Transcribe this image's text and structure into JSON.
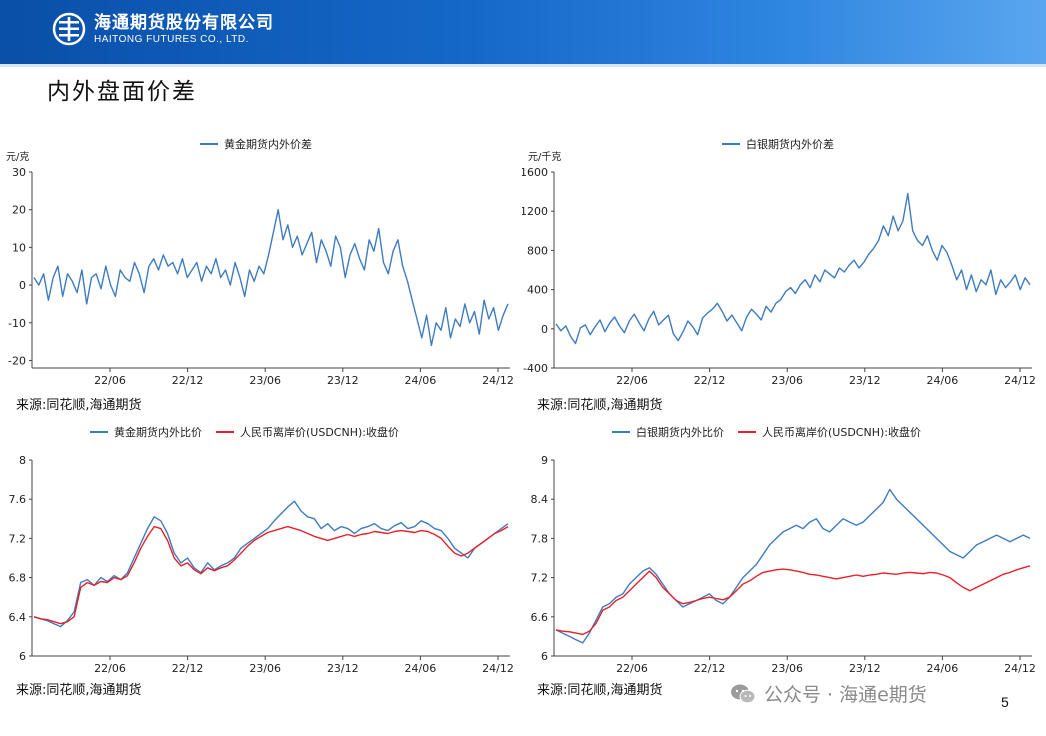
{
  "header": {
    "company_cn": "海通期货股份有限公司",
    "company_en": "HAITONG FUTURES CO., LTD."
  },
  "page_title": "内外盘面价差",
  "footer": {
    "wechat_label": "公众号 · 海通e期货",
    "page_number": "5"
  },
  "colors": {
    "blue": "#3f7cbf",
    "red": "#e8202a",
    "header": "#1568c8"
  },
  "chart_data": [
    {
      "id": "gold-spread",
      "type": "line",
      "unit": "元/克",
      "source": "来源:同花顺,海通期货",
      "legend_position": "top",
      "x_ticks": [
        "22/06",
        "22/12",
        "23/06",
        "23/12",
        "24/06",
        "24/12"
      ],
      "y_ticks": [
        "30",
        "20",
        "10",
        "0",
        "-10",
        "-20"
      ],
      "ylim": [
        -22,
        30
      ],
      "series": [
        {
          "name": "黄金期货内外价差",
          "color": "#3f7cbf",
          "values": [
            2,
            0,
            3,
            -4,
            2,
            5,
            -3,
            3,
            1,
            -2,
            4,
            -5,
            2,
            3,
            -1,
            5,
            0,
            -3,
            4,
            2,
            1,
            6,
            3,
            -2,
            5,
            7,
            4,
            8,
            5,
            6,
            3,
            7,
            2,
            4,
            6,
            1,
            5,
            3,
            7,
            2,
            4,
            0,
            6,
            2,
            -3,
            4,
            1,
            5,
            3,
            8,
            14,
            20,
            12,
            16,
            10,
            13,
            8,
            11,
            14,
            6,
            12,
            9,
            5,
            13,
            10,
            2,
            8,
            11,
            7,
            4,
            12,
            9,
            15,
            6,
            3,
            9,
            12,
            5,
            1,
            -4,
            -9,
            -14,
            -8,
            -16,
            -10,
            -12,
            -6,
            -14,
            -9,
            -11,
            -5,
            -10,
            -7,
            -13,
            -4,
            -9,
            -6,
            -12,
            -8,
            -5
          ]
        }
      ]
    },
    {
      "id": "silver-spread",
      "type": "line",
      "unit": "元/千克",
      "source": "来源:同花顺,海通期货",
      "legend_position": "top",
      "x_ticks": [
        "22/06",
        "22/12",
        "23/06",
        "23/12",
        "24/06",
        "24/12"
      ],
      "y_ticks": [
        "1600",
        "1200",
        "800",
        "400",
        "0",
        "-400"
      ],
      "ylim": [
        -400,
        1600
      ],
      "series": [
        {
          "name": "白银期货内外价差",
          "color": "#3f7cbf",
          "values": [
            50,
            -20,
            30,
            -80,
            -150,
            10,
            40,
            -60,
            20,
            90,
            -30,
            60,
            120,
            30,
            -40,
            80,
            150,
            60,
            -20,
            100,
            180,
            40,
            90,
            140,
            -50,
            -120,
            -30,
            80,
            20,
            -60,
            110,
            160,
            200,
            260,
            180,
            80,
            140,
            60,
            -20,
            120,
            200,
            150,
            90,
            230,
            170,
            260,
            300,
            380,
            420,
            360,
            450,
            500,
            420,
            550,
            480,
            600,
            560,
            520,
            620,
            580,
            650,
            700,
            620,
            680,
            760,
            820,
            900,
            1050,
            950,
            1150,
            1000,
            1100,
            1380,
            1000,
            900,
            850,
            950,
            800,
            700,
            850,
            780,
            650,
            500,
            600,
            400,
            550,
            380,
            500,
            450,
            600,
            350,
            500,
            420,
            480,
            550,
            400,
            520,
            450
          ]
        }
      ]
    },
    {
      "id": "gold-ratio",
      "type": "line",
      "unit": "",
      "source": "来源:同花顺,海通期货",
      "legend_position": "top",
      "x_ticks": [
        "22/06",
        "22/12",
        "23/06",
        "23/12",
        "24/06",
        "24/12"
      ],
      "y_ticks": [
        "8",
        "7.6",
        "7.2",
        "6.8",
        "6.4",
        "6"
      ],
      "ylim": [
        6,
        8
      ],
      "series": [
        {
          "name": "黄金期货内外比价",
          "color": "#3f7cbf",
          "values": [
            6.4,
            6.38,
            6.36,
            6.33,
            6.3,
            6.36,
            6.45,
            6.75,
            6.78,
            6.72,
            6.8,
            6.76,
            6.82,
            6.78,
            6.85,
            7.0,
            7.15,
            7.3,
            7.42,
            7.38,
            7.25,
            7.05,
            6.95,
            7.0,
            6.9,
            6.85,
            6.95,
            6.88,
            6.92,
            6.95,
            7.0,
            7.1,
            7.15,
            7.2,
            7.25,
            7.3,
            7.38,
            7.45,
            7.52,
            7.58,
            7.48,
            7.42,
            7.4,
            7.3,
            7.35,
            7.28,
            7.32,
            7.3,
            7.25,
            7.3,
            7.32,
            7.35,
            7.3,
            7.28,
            7.33,
            7.36,
            7.3,
            7.32,
            7.38,
            7.35,
            7.3,
            7.28,
            7.2,
            7.1,
            7.05,
            7.0,
            7.1,
            7.15,
            7.2,
            7.25,
            7.3,
            7.35
          ]
        },
        {
          "name": "人民币离岸价(USDCNH):收盘价",
          "color": "#e8202a",
          "values": [
            6.4,
            6.38,
            6.37,
            6.35,
            6.33,
            6.35,
            6.4,
            6.7,
            6.75,
            6.72,
            6.76,
            6.75,
            6.8,
            6.78,
            6.82,
            6.95,
            7.1,
            7.22,
            7.32,
            7.3,
            7.18,
            7.0,
            6.92,
            6.95,
            6.88,
            6.84,
            6.9,
            6.87,
            6.9,
            6.92,
            6.98,
            7.05,
            7.12,
            7.18,
            7.22,
            7.26,
            7.28,
            7.3,
            7.32,
            7.3,
            7.28,
            7.25,
            7.22,
            7.2,
            7.18,
            7.2,
            7.22,
            7.24,
            7.22,
            7.24,
            7.25,
            7.27,
            7.26,
            7.25,
            7.27,
            7.28,
            7.27,
            7.26,
            7.28,
            7.27,
            7.24,
            7.2,
            7.12,
            7.05,
            7.02,
            7.05,
            7.1,
            7.15,
            7.2,
            7.25,
            7.28,
            7.32
          ]
        }
      ]
    },
    {
      "id": "silver-ratio",
      "type": "line",
      "unit": "",
      "source": "来源:同花顺,海通期货",
      "legend_position": "top",
      "x_ticks": [
        "22/06",
        "22/12",
        "23/06",
        "23/12",
        "24/06",
        "24/12"
      ],
      "y_ticks": [
        "9",
        "8.4",
        "7.8",
        "7.2",
        "6.6",
        "6"
      ],
      "ylim": [
        6,
        9
      ],
      "series": [
        {
          "name": "白银期货内外比价",
          "color": "#3f7cbf",
          "values": [
            6.4,
            6.35,
            6.3,
            6.25,
            6.2,
            6.35,
            6.55,
            6.75,
            6.8,
            6.9,
            6.95,
            7.1,
            7.2,
            7.3,
            7.35,
            7.25,
            7.1,
            6.95,
            6.85,
            6.75,
            6.8,
            6.85,
            6.9,
            6.95,
            6.85,
            6.8,
            6.9,
            7.05,
            7.2,
            7.3,
            7.4,
            7.55,
            7.7,
            7.8,
            7.9,
            7.95,
            8.0,
            7.95,
            8.05,
            8.1,
            7.95,
            7.9,
            8.0,
            8.1,
            8.05,
            8.0,
            8.05,
            8.15,
            8.25,
            8.35,
            8.55,
            8.4,
            8.3,
            8.2,
            8.1,
            8.0,
            7.9,
            7.8,
            7.7,
            7.6,
            7.55,
            7.5,
            7.6,
            7.7,
            7.75,
            7.8,
            7.85,
            7.8,
            7.75,
            7.8,
            7.85,
            7.8
          ]
        },
        {
          "name": "人民币离岸价(USDCNH):收盘价",
          "color": "#e8202a",
          "values": [
            6.4,
            6.38,
            6.37,
            6.35,
            6.33,
            6.38,
            6.5,
            6.7,
            6.75,
            6.85,
            6.9,
            7.0,
            7.1,
            7.2,
            7.3,
            7.2,
            7.05,
            6.95,
            6.85,
            6.8,
            6.82,
            6.85,
            6.88,
            6.9,
            6.88,
            6.86,
            6.9,
            7.0,
            7.1,
            7.15,
            7.22,
            7.28,
            7.3,
            7.32,
            7.33,
            7.32,
            7.3,
            7.28,
            7.25,
            7.24,
            7.22,
            7.2,
            7.18,
            7.2,
            7.22,
            7.24,
            7.22,
            7.24,
            7.25,
            7.27,
            7.26,
            7.25,
            7.27,
            7.28,
            7.27,
            7.26,
            7.28,
            7.27,
            7.24,
            7.2,
            7.12,
            7.05,
            7.0,
            7.05,
            7.1,
            7.15,
            7.2,
            7.25,
            7.28,
            7.32,
            7.35,
            7.38
          ]
        }
      ]
    }
  ]
}
